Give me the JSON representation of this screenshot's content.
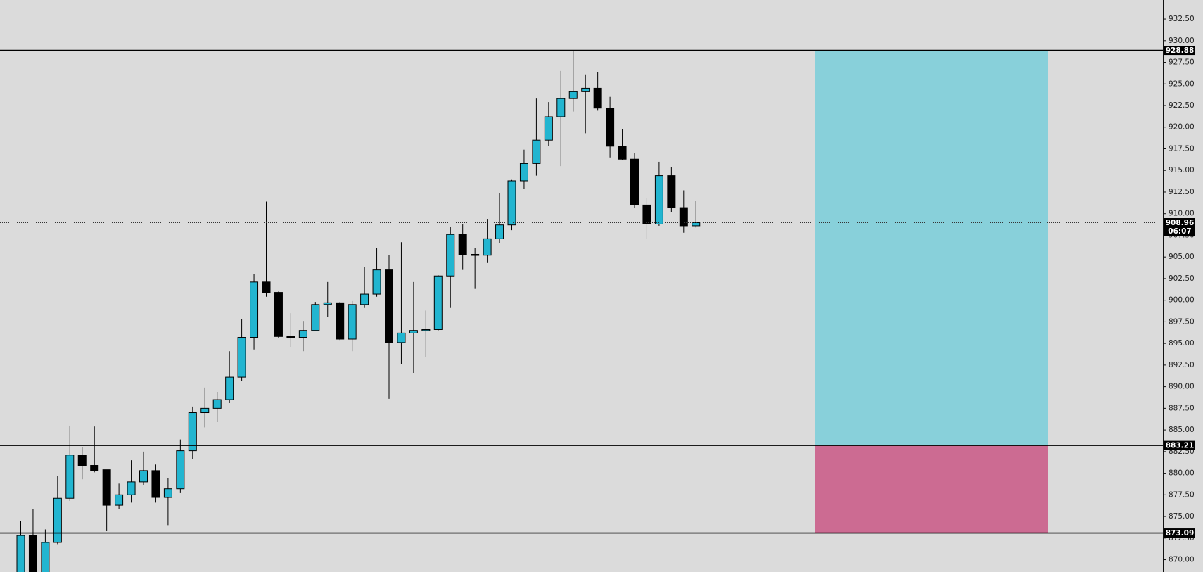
{
  "chart_data": {
    "type": "candlestick",
    "open": [
      867.5,
      872.8,
      867.5,
      872.0,
      877.1,
      882.1,
      880.9,
      880.4,
      876.3,
      877.5,
      879.0,
      880.3,
      877.2,
      878.2,
      882.6,
      887.0,
      887.5,
      888.5,
      891.1,
      895.7,
      902.1,
      900.9,
      895.8,
      895.7,
      896.5,
      899.5,
      899.7,
      895.5,
      899.5,
      900.7,
      903.5,
      895.1,
      896.2,
      896.5,
      896.6,
      902.8,
      907.6,
      905.3,
      905.2,
      907.1,
      908.7,
      913.8,
      915.8,
      918.5,
      921.2,
      923.3,
      924.1,
      924.5,
      922.2,
      917.8,
      916.3,
      911.0,
      908.8,
      914.4,
      910.7,
      908.6
    ],
    "high": [
      874.5,
      875.9,
      873.5,
      879.7,
      885.5,
      883.0,
      885.4,
      880.4,
      878.8,
      881.5,
      882.5,
      881.0,
      879.4,
      883.9,
      887.7,
      889.9,
      889.4,
      894.1,
      897.8,
      903.0,
      911.4,
      901.0,
      898.5,
      897.6,
      899.8,
      902.1,
      899.8,
      899.9,
      903.8,
      906.0,
      905.2,
      906.7,
      902.1,
      898.8,
      902.9,
      908.5,
      908.8,
      906.0,
      909.4,
      912.4,
      913.9,
      917.4,
      923.3,
      922.9,
      926.5,
      928.88,
      926.1,
      926.4,
      923.5,
      919.8,
      917.0,
      911.8,
      916.0,
      915.4,
      912.7,
      911.5
    ],
    "low": [
      866.5,
      866.0,
      866.5,
      871.8,
      876.8,
      879.3,
      880.1,
      873.3,
      875.9,
      876.6,
      878.6,
      876.6,
      874.0,
      877.7,
      881.6,
      885.3,
      885.9,
      888.1,
      890.7,
      894.3,
      900.4,
      895.6,
      894.6,
      894.1,
      896.4,
      898.1,
      895.4,
      894.1,
      899.1,
      900.4,
      888.6,
      892.6,
      891.6,
      893.4,
      896.4,
      899.1,
      903.5,
      901.3,
      904.3,
      906.6,
      908.1,
      912.9,
      914.4,
      917.8,
      915.5,
      921.8,
      919.3,
      921.9,
      916.5,
      916.2,
      910.7,
      907.1,
      908.6,
      910.2,
      907.8,
      908.4
    ],
    "close": [
      872.8,
      867.5,
      872.0,
      877.1,
      882.1,
      880.9,
      880.3,
      876.3,
      877.5,
      879.0,
      880.3,
      877.2,
      878.2,
      882.6,
      887.0,
      887.5,
      888.5,
      891.1,
      895.7,
      902.1,
      900.9,
      895.8,
      895.7,
      896.5,
      899.5,
      899.7,
      895.5,
      899.5,
      900.7,
      903.5,
      895.1,
      896.2,
      896.5,
      896.6,
      902.8,
      907.6,
      905.3,
      905.2,
      907.1,
      908.7,
      913.8,
      915.8,
      918.5,
      921.2,
      923.3,
      924.1,
      924.5,
      922.2,
      917.8,
      916.3,
      911.0,
      908.8,
      914.4,
      910.7,
      908.6,
      908.96
    ],
    "up_color": "#22b5d0",
    "down_color": "#000000",
    "ylim": [
      868.58,
      934.7
    ],
    "yticks": [
      {
        "value": 932.5,
        "label": "932.50"
      },
      {
        "value": 930,
        "label": "930.00"
      },
      {
        "value": 927.5,
        "label": "927.50"
      },
      {
        "value": 925,
        "label": "925.00"
      },
      {
        "value": 922.5,
        "label": "922.50"
      },
      {
        "value": 920,
        "label": "920.00"
      },
      {
        "value": 917.5,
        "label": "917.50"
      },
      {
        "value": 915,
        "label": "915.00"
      },
      {
        "value": 912.5,
        "label": "912.50"
      },
      {
        "value": 910,
        "label": "910.00"
      },
      {
        "value": 907.5,
        "label": "907.50"
      },
      {
        "value": 905,
        "label": "905.00"
      },
      {
        "value": 902.5,
        "label": "902.50"
      },
      {
        "value": 900,
        "label": "900.00"
      },
      {
        "value": 897.5,
        "label": "897.50"
      },
      {
        "value": 895,
        "label": "895.00"
      },
      {
        "value": 892.5,
        "label": "892.50"
      },
      {
        "value": 890,
        "label": "890.00"
      },
      {
        "value": 887.5,
        "label": "887.50"
      },
      {
        "value": 885,
        "label": "885.00"
      },
      {
        "value": 882.5,
        "label": "882.50"
      },
      {
        "value": 880,
        "label": "880.00"
      },
      {
        "value": 877.5,
        "label": "877.50"
      },
      {
        "value": 875,
        "label": "875.00"
      },
      {
        "value": 872.5,
        "label": "872.50"
      },
      {
        "value": 870,
        "label": "870.00"
      }
    ],
    "levels": [
      928.88,
      883.21,
      873.09
    ],
    "target_color": "#88d0da",
    "stop_color": "#cc6b92",
    "countdown": "06:07"
  }
}
